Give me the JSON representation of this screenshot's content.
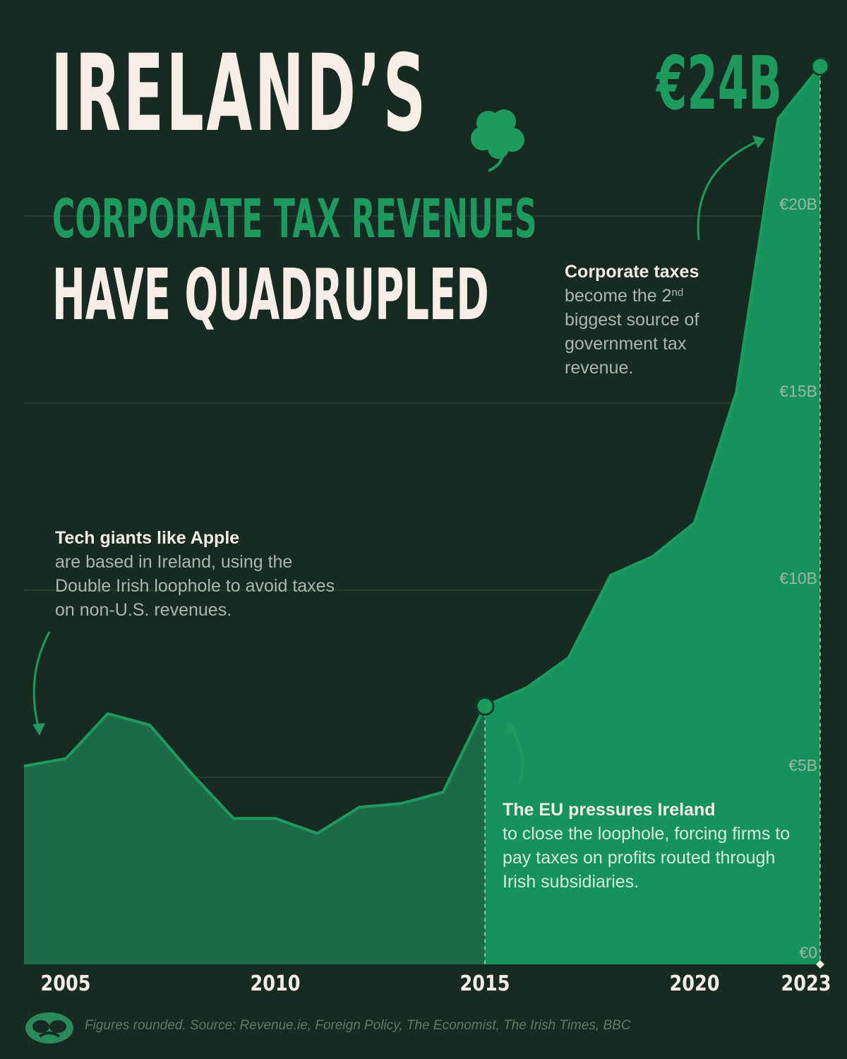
{
  "title": {
    "line1": "IRELAND’S",
    "line2": "CORPORATE TAX REVENUES",
    "line3": "HAVE QUADRUPLED"
  },
  "peak_label": "€24B",
  "annotations": {
    "apple": {
      "heading": "Tech giants like Apple",
      "body": "are based in Ireland, using the Double Irish loophole to avoid taxes on non-U.S. revenues."
    },
    "eu": {
      "heading": "The EU pressures Ireland",
      "body": "to close the loophole, forcing firms to pay taxes on profits routed through Irish subsidiaries."
    },
    "corp": {
      "heading": "Corporate taxes",
      "body_pre": "become the 2",
      "body_sup": "nd",
      "body_post": " biggest source of government tax revenue."
    }
  },
  "source": "Figures rounded. Source: Revenue.ie, Foreign Policy, The Economist, The Irish Times, BBC",
  "colors": {
    "background": "#182b22",
    "area_before": "#1c6b48",
    "area_after": "#16925d",
    "line": "#1f9a5f",
    "title_light": "#f8ede6",
    "accent": "#1f9a5f"
  },
  "icons": [
    "shamrock-icon",
    "logo-icon"
  ],
  "chart_data": {
    "type": "area",
    "x": [
      2004,
      2005,
      2006,
      2007,
      2008,
      2009,
      2010,
      2011,
      2012,
      2013,
      2014,
      2015,
      2016,
      2017,
      2018,
      2019,
      2020,
      2021,
      2022,
      2023
    ],
    "values": [
      5.3,
      5.5,
      6.7,
      6.4,
      5.1,
      3.9,
      3.9,
      3.5,
      4.2,
      4.3,
      4.6,
      6.9,
      7.4,
      8.2,
      10.4,
      10.9,
      11.8,
      15.3,
      22.6,
      24.0
    ],
    "units": "€ billions",
    "x_ticks": [
      "2005",
      "2010",
      "2015",
      "2020",
      "2023"
    ],
    "x_tick_values": [
      2005,
      2010,
      2015,
      2020,
      2023
    ],
    "y_ticks": [
      "€0",
      "€5B",
      "€10B",
      "€15B",
      "€20B"
    ],
    "y_tick_values": [
      0,
      5,
      10,
      15,
      20
    ],
    "ylim": [
      0,
      24
    ],
    "highlighted_points": [
      2015,
      2023
    ],
    "grid": true
  }
}
